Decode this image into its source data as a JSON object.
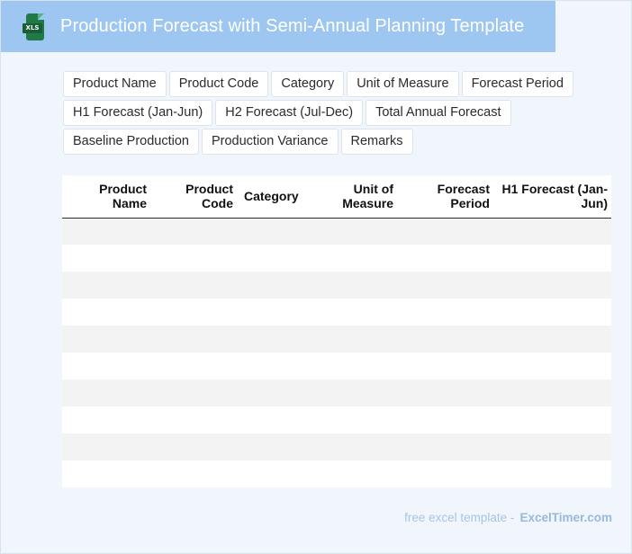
{
  "header": {
    "icon_label": "XLS",
    "icon": "excel-file-icon",
    "title": "Production Forecast with Semi-Annual Planning Template"
  },
  "fields": {
    "rows": [
      [
        "Product Name",
        "Product Code",
        "Category",
        "Unit of Measure",
        "Forecast Period"
      ],
      [
        "H1 Forecast (Jan-Jun)",
        "H2 Forecast (Jul-Dec)",
        "Total Annual Forecast"
      ],
      [
        "Baseline Production",
        "Production Variance",
        "Remarks"
      ]
    ]
  },
  "table": {
    "columns": [
      "Product\nName",
      "Product\nCode",
      "Category",
      "Unit of\nMeasure",
      "Forecast\nPeriod",
      "H1 Forecast (Jan-\nJun)"
    ],
    "row_count": 10
  },
  "footer": {
    "text": "free excel template -",
    "brand": "ExcelTimer.com"
  },
  "colors": {
    "title_bar": "#9dc6f1",
    "page_bg": "#f1f6fc",
    "stripe": "#f3f3f3",
    "icon_green": "#1f7a45"
  }
}
